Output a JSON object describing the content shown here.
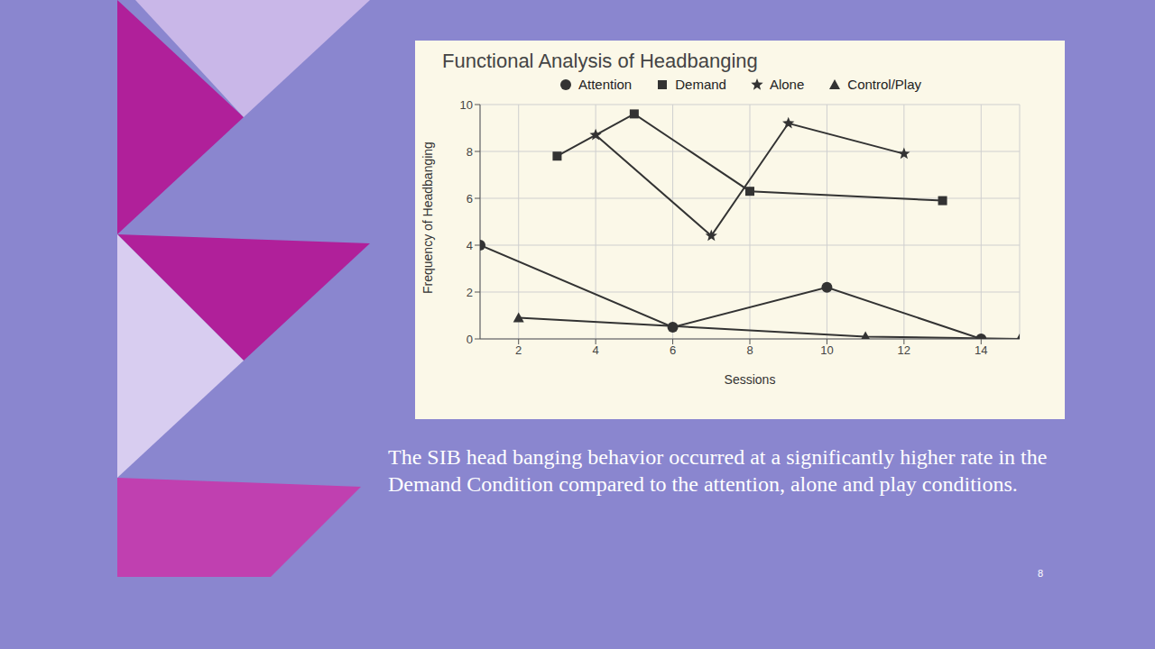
{
  "chart_data": {
    "type": "line",
    "title": "Functional Analysis of Headbanging",
    "x_label": "Sessions",
    "y_label": "Frequency of Headbanging",
    "xlim": [
      1,
      15
    ],
    "xticks": [
      2,
      4,
      6,
      8,
      10,
      12,
      14
    ],
    "ylim": [
      0,
      10
    ],
    "yticks": [
      0,
      2,
      4,
      6,
      8,
      10
    ],
    "grid": true,
    "legend": "top",
    "series": [
      {
        "name": "Attention",
        "color": "#333333",
        "marker": "circle",
        "x": [
          1,
          6,
          10,
          14
        ],
        "values": [
          4,
          0.5,
          2.2,
          0
        ]
      },
      {
        "name": "Demand",
        "color": "#333333",
        "marker": "square",
        "x": [
          3,
          5,
          8,
          13
        ],
        "values": [
          7.8,
          9.6,
          6.3,
          5.9
        ]
      },
      {
        "name": "Alone",
        "color": "#333333",
        "marker": "star",
        "x": [
          4,
          7,
          9,
          12
        ],
        "values": [
          8.7,
          4.4,
          9.2,
          7.9
        ]
      },
      {
        "name": "Control/Play",
        "color": "#333333",
        "marker": "triangle",
        "x": [
          2,
          11,
          15
        ],
        "values": [
          0.9,
          0.1,
          0
        ]
      }
    ],
    "annotations": [
      "The SIB head banging behavior occurred at a significantly higher rate in the Demand Condition compared to the attention, alone and play conditions.",
      "8"
    ]
  }
}
